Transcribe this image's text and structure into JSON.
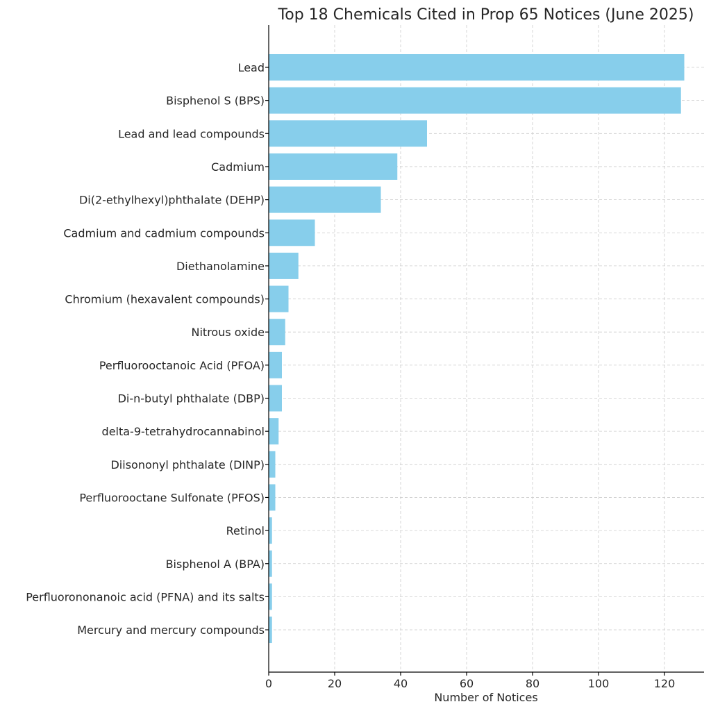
{
  "chart_data": {
    "type": "bar",
    "orientation": "horizontal",
    "title": "Top 18 Chemicals Cited in Prop 65 Notices (June 2025)",
    "xlabel": "Number of Notices",
    "ylabel": "",
    "xlim": [
      0,
      132
    ],
    "xticks": [
      0,
      20,
      40,
      60,
      80,
      100,
      120
    ],
    "grid": true,
    "bar_color": "#87CEEB",
    "categories": [
      "Lead",
      "Bisphenol S (BPS)",
      "Lead and lead compounds",
      "Cadmium",
      "Di(2-ethylhexyl)phthalate (DEHP)",
      "Cadmium and cadmium compounds",
      "Diethanolamine",
      "Chromium (hexavalent compounds)",
      "Nitrous oxide",
      "Perfluorooctanoic Acid (PFOA)",
      "Di-n-butyl phthalate (DBP)",
      "delta-9-tetrahydrocannabinol",
      "Diisononyl phthalate (DINP)",
      "Perfluorooctane Sulfonate (PFOS)",
      "Retinol",
      "Bisphenol A (BPA)",
      "Perfluorononanoic acid (PFNA) and its salts",
      "Mercury and mercury compounds"
    ],
    "values": [
      126,
      125,
      48,
      39,
      34,
      14,
      9,
      6,
      5,
      4,
      4,
      3,
      2,
      2,
      1,
      1,
      1,
      1
    ]
  }
}
